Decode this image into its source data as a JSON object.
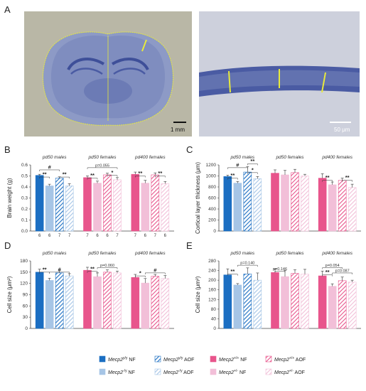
{
  "panel_letters": {
    "A": "A",
    "B": "B",
    "C": "C",
    "D": "D",
    "E": "E"
  },
  "micrographs": {
    "left_scale": "1 mm",
    "right_scale": "50 μm",
    "colors": {
      "bg_left": "#b9b7a6",
      "tissue": "#7f8dbf",
      "dark": "#4a5ba3",
      "bg_right": "#cdd0dc",
      "marker": "#e8ea3c"
    }
  },
  "colors": {
    "y_nf": "#1b6ec2",
    "y_aof": "#1b6ec2",
    "o_nf": "#a6c5e6",
    "o_aof": "#a6c5e6",
    "yf_nf": "#e8558c",
    "yf_aof": "#e8558c",
    "of_nf": "#f2bfd8",
    "of_aof": "#f2bfd8"
  },
  "legend": {
    "items": [
      {
        "key": "y_nf",
        "gene": "Mecp2",
        "sup": "y",
        "suffix": "/y",
        "diet": " NF",
        "hatched": false
      },
      {
        "key": "y_aof",
        "gene": "Mecp2",
        "sup": "y",
        "suffix": "/y",
        "diet": " AOF",
        "hatched": true
      },
      {
        "key": "yf_nf",
        "gene": "Mecp2",
        "sup": "+",
        "suffix": "/+",
        "diet": " NF",
        "hatched": false
      },
      {
        "key": "yf_aof",
        "gene": "Mecp2",
        "sup": "+",
        "suffix": "/+",
        "diet": " AOF",
        "hatched": true
      },
      {
        "key": "o_nf",
        "gene": "Mecp2",
        "sup": "-",
        "suffix": "/y",
        "diet": " NF",
        "hatched": false
      },
      {
        "key": "o_aof",
        "gene": "Mecp2",
        "sup": "-",
        "suffix": "/y",
        "diet": " AOF",
        "hatched": true
      },
      {
        "key": "of_nf",
        "gene": "Mecp2",
        "sup": "+",
        "suffix": "/-",
        "diet": " NF",
        "hatched": false
      },
      {
        "key": "of_aof",
        "gene": "Mecp2",
        "sup": "+",
        "suffix": "/-",
        "diet": " AOF",
        "hatched": true
      }
    ]
  },
  "chart_data": [
    {
      "panel": "B",
      "type": "bar",
      "title": "",
      "ylabel": "Brain weight (g)",
      "ylim": [
        0,
        0.6
      ],
      "yticks": [
        0,
        0.1,
        0.2,
        0.3,
        0.4,
        0.5,
        0.6
      ],
      "groups": [
        "pd50 males",
        "pd50 females",
        "pd400 females"
      ],
      "bar_keys": [
        [
          "y_nf",
          "o_nf",
          "y_aof",
          "o_aof"
        ],
        [
          "yf_nf",
          "of_nf",
          "yf_aof",
          "of_aof"
        ],
        [
          "yf_nf",
          "of_nf",
          "yf_aof",
          "of_aof"
        ]
      ],
      "values": [
        [
          0.505,
          0.41,
          0.48,
          0.41
        ],
        [
          0.485,
          0.435,
          0.51,
          0.465
        ],
        [
          0.515,
          0.435,
          0.51,
          0.43
        ]
      ],
      "errors": [
        [
          0.01,
          0.015,
          0.012,
          0.02
        ],
        [
          0.015,
          0.018,
          0.015,
          0.02
        ],
        [
          0.02,
          0.025,
          0.018,
          0.02
        ]
      ],
      "n_labels": [
        [
          "6",
          "6",
          "7",
          "7"
        ],
        [
          "7",
          "6",
          "6",
          "7"
        ],
        [
          "7",
          "6",
          "7",
          "6"
        ]
      ],
      "annotations": [
        {
          "group": 0,
          "from": 0,
          "to": 1,
          "level": 0.49,
          "label": "**"
        },
        {
          "group": 0,
          "from": 0,
          "to": 2,
          "level": 0.555,
          "label": "#"
        },
        {
          "group": 0,
          "from": 2,
          "to": 3,
          "level": 0.49,
          "label": "**"
        },
        {
          "group": 1,
          "from": 0,
          "to": 1,
          "level": 0.48,
          "label": "**"
        },
        {
          "group": 1,
          "from": 0,
          "to": 3,
          "level": 0.575,
          "label": "p=0.055"
        },
        {
          "group": 1,
          "from": 2,
          "to": 3,
          "level": 0.505,
          "label": "*"
        },
        {
          "group": 2,
          "from": 0,
          "to": 1,
          "level": 0.5,
          "label": "**"
        },
        {
          "group": 2,
          "from": 2,
          "to": 3,
          "level": 0.5,
          "label": "**"
        }
      ]
    },
    {
      "panel": "C",
      "type": "bar",
      "title": "",
      "ylabel": "Cortical layer thickness (μm)",
      "ylim": [
        0,
        1200
      ],
      "yticks": [
        0,
        200,
        400,
        600,
        800,
        1000,
        1200
      ],
      "groups": [
        "pd50 males",
        "pd50 females",
        "pd400 females"
      ],
      "bar_keys": [
        [
          "y_nf",
          "o_nf",
          "y_aof",
          "o_aof"
        ],
        [
          "yf_nf",
          "of_nf",
          "yf_aof",
          "of_aof"
        ],
        [
          "yf_nf",
          "of_nf",
          "yf_aof",
          "of_aof"
        ]
      ],
      "values": [
        [
          990,
          870,
          1070,
          950
        ],
        [
          1050,
          1020,
          1060,
          1000
        ],
        [
          960,
          840,
          920,
          790
        ]
      ],
      "errors": [
        [
          25,
          30,
          100,
          40
        ],
        [
          60,
          80,
          60,
          30
        ],
        [
          80,
          50,
          40,
          60
        ]
      ],
      "annotations": [
        {
          "group": 0,
          "from": 0,
          "to": 1,
          "level": 960,
          "label": "**"
        },
        {
          "group": 0,
          "from": 0,
          "to": 2,
          "level": 1150,
          "label": "#"
        },
        {
          "group": 0,
          "from": 2,
          "to": 3,
          "level": 1060,
          "label": "*"
        },
        {
          "group": 0,
          "from": 2,
          "to": 3,
          "level": 1220,
          "label": "**"
        },
        {
          "group": 2,
          "from": 0,
          "to": 1,
          "level": 920,
          "label": "**"
        },
        {
          "group": 2,
          "from": 2,
          "to": 3,
          "level": 920,
          "label": "**"
        }
      ]
    },
    {
      "panel": "D",
      "type": "bar",
      "title": "",
      "ylabel": "Cell size (μm²)",
      "ylim": [
        0,
        180
      ],
      "yticks": [
        0,
        30,
        60,
        90,
        120,
        150,
        180
      ],
      "groups": [
        "pd50 males",
        "pd50 females",
        "pd400 females"
      ],
      "bar_keys": [
        [
          "y_nf",
          "o_nf",
          "y_aof",
          "o_aof"
        ],
        [
          "yf_nf",
          "of_nf",
          "yf_aof",
          "of_aof"
        ],
        [
          "yf_nf",
          "of_nf",
          "yf_aof",
          "of_aof"
        ]
      ],
      "values": [
        [
          150,
          128,
          148,
          140
        ],
        [
          155,
          138,
          150,
          148
        ],
        [
          136,
          121,
          139,
          133
        ]
      ],
      "errors": [
        [
          8,
          6,
          7,
          6
        ],
        [
          8,
          10,
          6,
          5
        ],
        [
          8,
          12,
          5,
          8
        ]
      ],
      "annotations": [
        {
          "group": 0,
          "from": 0,
          "to": 1,
          "level": 150,
          "label": "**"
        },
        {
          "group": 0,
          "from": 1,
          "to": 3,
          "level": 150,
          "label": "#"
        },
        {
          "group": 1,
          "from": 0,
          "to": 1,
          "level": 152,
          "label": "**"
        },
        {
          "group": 1,
          "from": 1,
          "to": 3,
          "level": 162,
          "label": "p=0.060"
        },
        {
          "group": 2,
          "from": 0,
          "to": 1,
          "level": 140,
          "label": "*"
        },
        {
          "group": 2,
          "from": 1,
          "to": 3,
          "level": 148,
          "label": "#"
        }
      ]
    },
    {
      "panel": "E",
      "type": "bar",
      "title": "",
      "ylabel": "Cell size (μm²)",
      "ylim": [
        0,
        280
      ],
      "yticks": [
        0,
        40,
        80,
        120,
        160,
        200,
        240,
        280
      ],
      "groups": [
        "pd50 males",
        "pd50 females",
        "pd400 females"
      ],
      "bar_keys": [
        [
          "y_nf",
          "o_nf",
          "y_aof",
          "o_aof"
        ],
        [
          "yf_nf",
          "of_nf",
          "yf_aof",
          "of_aof"
        ],
        [
          "yf_nf",
          "of_nf",
          "yf_aof",
          "of_aof"
        ]
      ],
      "values": [
        [
          222,
          180,
          226,
          200
        ],
        [
          232,
          215,
          228,
          225
        ],
        [
          218,
          175,
          198,
          192
        ]
      ],
      "errors": [
        [
          25,
          6,
          25,
          30
        ],
        [
          15,
          25,
          15,
          20
        ],
        [
          20,
          10,
          15,
          8
        ]
      ],
      "annotations": [
        {
          "group": 0,
          "from": 0,
          "to": 1,
          "level": 225,
          "label": "**"
        },
        {
          "group": 0,
          "from": 1,
          "to": 3,
          "level": 262,
          "label": "p=0.140"
        },
        {
          "group": 1,
          "from": 0,
          "to": 1,
          "level": 238,
          "label": "p=0.146"
        },
        {
          "group": 2,
          "from": 0,
          "to": 1,
          "level": 222,
          "label": "**"
        },
        {
          "group": 2,
          "from": 0,
          "to": 2,
          "level": 252,
          "label": "p=0.054"
        },
        {
          "group": 2,
          "from": 1,
          "to": 3,
          "level": 230,
          "label": "p=0.087"
        }
      ]
    }
  ]
}
